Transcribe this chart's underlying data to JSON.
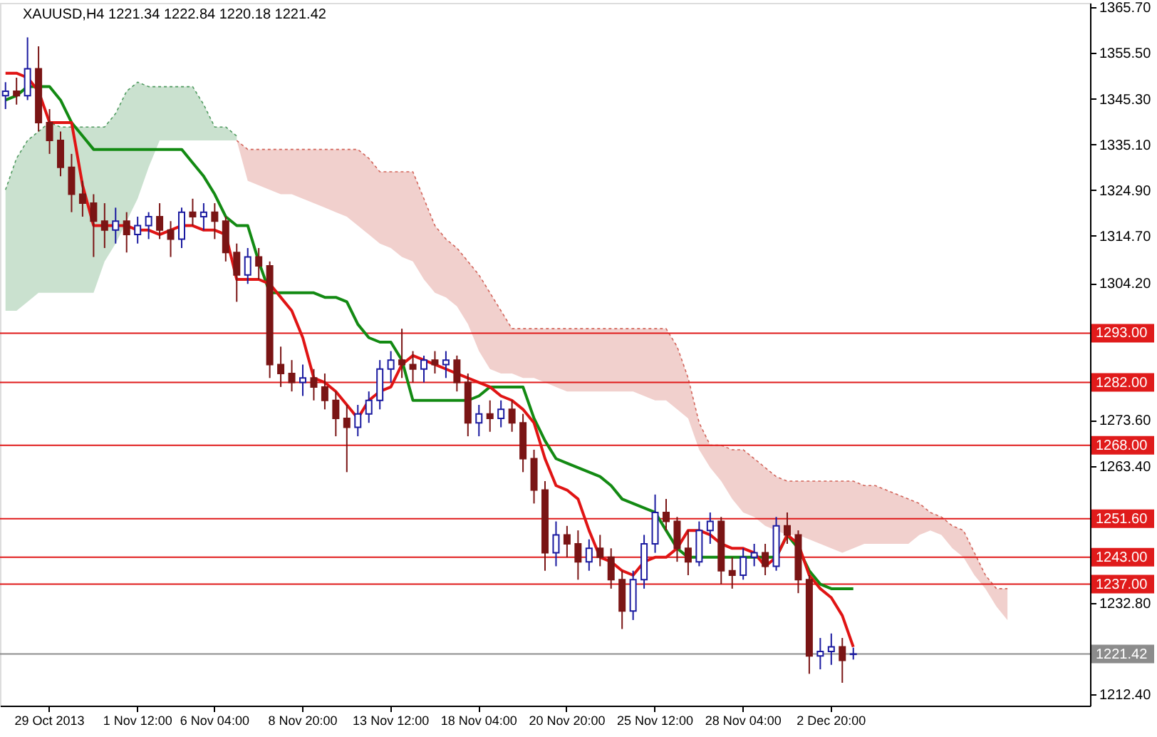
{
  "chart_data": {
    "type": "candlestick",
    "title": "XAUUSD,H4  1221.34 1222.84 1220.18 1221.42",
    "categories": [
      null,
      null,
      null,
      null,
      "29 Oct 2013",
      null,
      null,
      null,
      null,
      null,
      null,
      null,
      "1 Nov 12:00",
      null,
      null,
      null,
      null,
      null,
      null,
      "6 Nov 04:00",
      null,
      null,
      null,
      null,
      null,
      null,
      null,
      "8 Nov 20:00",
      null,
      null,
      null,
      null,
      null,
      null,
      null,
      "13 Nov 12:00",
      null,
      null,
      null,
      null,
      null,
      null,
      null,
      "18 Nov 04:00",
      null,
      null,
      null,
      null,
      null,
      null,
      null,
      "20 Nov 20:00",
      null,
      null,
      null,
      null,
      null,
      null,
      null,
      "25 Nov 12:00",
      null,
      null,
      null,
      null,
      null,
      null,
      null,
      "28 Nov 04:00",
      null,
      null,
      null,
      null,
      null,
      null,
      null,
      "2 Dec 20:00",
      null,
      null,
      null,
      null,
      null,
      null,
      null,
      null,
      null,
      null,
      null,
      null,
      null,
      null,
      null,
      null,
      null,
      null,
      null,
      null,
      null,
      null,
      null
    ],
    "ohlc": [
      [
        1346,
        1349,
        1343,
        1347
      ],
      [
        1347,
        1350,
        1344,
        1346
      ],
      [
        1346,
        1359,
        1345,
        1352
      ],
      [
        1352,
        1357,
        1338,
        1340
      ],
      [
        1340,
        1343,
        1333,
        1336
      ],
      [
        1336,
        1338,
        1328,
        1330
      ],
      [
        1330,
        1333,
        1320,
        1324
      ],
      [
        1324,
        1327,
        1319,
        1322
      ],
      [
        1322,
        1324,
        1310,
        1318
      ],
      [
        1318,
        1322,
        1312,
        1316
      ],
      [
        1316,
        1321,
        1313,
        1318
      ],
      [
        1318,
        1320,
        1311,
        1315
      ],
      [
        1315,
        1319,
        1313,
        1317
      ],
      [
        1317,
        1320,
        1314,
        1319
      ],
      [
        1319,
        1322,
        1314,
        1316
      ],
      [
        1316,
        1318,
        1310,
        1314
      ],
      [
        1314,
        1321,
        1312,
        1320
      ],
      [
        1320,
        1323,
        1317,
        1319
      ],
      [
        1319,
        1322,
        1316,
        1320
      ],
      [
        1320,
        1322,
        1314,
        1318
      ],
      [
        1318,
        1319,
        1309,
        1311
      ],
      [
        1311,
        1313,
        1300,
        1306
      ],
      [
        1306,
        1312,
        1304,
        1310
      ],
      [
        1310,
        1312,
        1305,
        1308
      ],
      [
        1308,
        1309,
        1283,
        1286
      ],
      [
        1286,
        1290,
        1281,
        1284
      ],
      [
        1284,
        1287,
        1280,
        1282
      ],
      [
        1282,
        1286,
        1279,
        1283
      ],
      [
        1283,
        1285,
        1278,
        1281
      ],
      [
        1281,
        1284,
        1276,
        1278
      ],
      [
        1278,
        1280,
        1270,
        1274
      ],
      [
        1274,
        1277,
        1262,
        1272
      ],
      [
        1272,
        1277,
        1270,
        1275
      ],
      [
        1275,
        1280,
        1273,
        1278
      ],
      [
        1278,
        1287,
        1276,
        1285
      ],
      [
        1285,
        1289,
        1282,
        1287
      ],
      [
        1287,
        1294,
        1283,
        1286
      ],
      [
        1286,
        1289,
        1282,
        1285
      ],
      [
        1285,
        1288,
        1282,
        1287
      ],
      [
        1287,
        1289,
        1284,
        1286
      ],
      [
        1286,
        1289,
        1283,
        1287
      ],
      [
        1287,
        1288,
        1280,
        1282
      ],
      [
        1282,
        1284,
        1270,
        1273
      ],
      [
        1273,
        1277,
        1270,
        1275
      ],
      [
        1275,
        1278,
        1271,
        1274
      ],
      [
        1274,
        1278,
        1272,
        1276
      ],
      [
        1276,
        1278,
        1271,
        1273
      ],
      [
        1273,
        1275,
        1262,
        1265
      ],
      [
        1265,
        1267,
        1255,
        1258
      ],
      [
        1258,
        1260,
        1240,
        1244
      ],
      [
        1244,
        1251,
        1241,
        1248
      ],
      [
        1248,
        1250,
        1243,
        1246
      ],
      [
        1246,
        1249,
        1238,
        1242
      ],
      [
        1242,
        1247,
        1240,
        1245
      ],
      [
        1245,
        1248,
        1241,
        1243
      ],
      [
        1243,
        1245,
        1236,
        1238
      ],
      [
        1238,
        1240,
        1227,
        1231
      ],
      [
        1231,
        1240,
        1229,
        1238
      ],
      [
        1238,
        1248,
        1236,
        1246
      ],
      [
        1246,
        1257,
        1244,
        1253
      ],
      [
        1253,
        1256,
        1249,
        1251
      ],
      [
        1251,
        1252,
        1242,
        1245
      ],
      [
        1245,
        1249,
        1239,
        1242
      ],
      [
        1242,
        1251,
        1241,
        1249
      ],
      [
        1249,
        1253,
        1246,
        1251
      ],
      [
        1251,
        1252,
        1237,
        1240
      ],
      [
        1240,
        1243,
        1236,
        1239
      ],
      [
        1239,
        1245,
        1238,
        1243
      ],
      [
        1243,
        1246,
        1241,
        1244
      ],
      [
        1244,
        1246,
        1239,
        1241
      ],
      [
        1241,
        1252,
        1240,
        1250
      ],
      [
        1250,
        1253,
        1246,
        1248
      ],
      [
        1248,
        1249,
        1235,
        1238
      ],
      [
        1238,
        1239,
        1217,
        1221
      ],
      [
        1221,
        1225,
        1218,
        1222
      ],
      [
        1222,
        1226,
        1219,
        1223
      ],
      [
        1223,
        1225,
        1215,
        1220
      ],
      [
        1221.34,
        1222.84,
        1220.18,
        1221.42
      ],
      null,
      null,
      null,
      null,
      null,
      null,
      null,
      null,
      null,
      null,
      null,
      null,
      null,
      null,
      null,
      null,
      null,
      null,
      null,
      null,
      null
    ],
    "colors": [
      "#1a1aa0",
      "#7a1515",
      "#1a1aa0",
      "#7a1515",
      "#7a1515",
      "#7a1515",
      "#7a1515",
      "#7a1515",
      "#7a1515",
      "#7a1515",
      "#1a1aa0",
      "#7a1515",
      "#1a1aa0",
      "#1a1aa0",
      "#7a1515",
      "#7a1515",
      "#1a1aa0",
      "#7a1515",
      "#1a1aa0",
      "#7a1515",
      "#7a1515",
      "#7a1515",
      "#1a1aa0",
      "#7a1515",
      "#7a1515",
      "#7a1515",
      "#7a1515",
      "#1a1aa0",
      "#7a1515",
      "#7a1515",
      "#7a1515",
      "#7a1515",
      "#1a1aa0",
      "#1a1aa0",
      "#1a1aa0",
      "#1a1aa0",
      "#7a1515",
      "#7a1515",
      "#1a1aa0",
      "#7a1515",
      "#1a1aa0",
      "#7a1515",
      "#7a1515",
      "#1a1aa0",
      "#7a1515",
      "#1a1aa0",
      "#7a1515",
      "#7a1515",
      "#7a1515",
      "#7a1515",
      "#1a1aa0",
      "#7a1515",
      "#7a1515",
      "#1a1aa0",
      "#7a1515",
      "#7a1515",
      "#7a1515",
      "#1a1aa0",
      "#1a1aa0",
      "#1a1aa0",
      "#7a1515",
      "#7a1515",
      "#7a1515",
      "#1a1aa0",
      "#1a1aa0",
      "#7a1515",
      "#7a1515",
      "#1a1aa0",
      "#1a1aa0",
      "#7a1515",
      "#1a1aa0",
      "#7a1515",
      "#7a1515",
      "#7a1515",
      "#1a1aa0",
      "#1a1aa0",
      "#7a1515",
      "#1a1aa0",
      null,
      null,
      null,
      null,
      null,
      null,
      null,
      null,
      null,
      null,
      null,
      null,
      null,
      null,
      null,
      null,
      null,
      null,
      null,
      null,
      null
    ],
    "series": [
      {
        "type": "line",
        "line_style": "dotted",
        "color": "#4f9a5f",
        "values": [
          1325,
          1332,
          1336,
          1338,
          1340,
          1339,
          1339,
          1339,
          1339,
          1339,
          1342,
          1347,
          1349,
          1348,
          1348,
          1348,
          1348,
          1348,
          1344,
          1339,
          1339,
          1337,
          null,
          null,
          null,
          null,
          null,
          null,
          null,
          null,
          null,
          null,
          null,
          null,
          null,
          null,
          null,
          null,
          null,
          null,
          null,
          null,
          null,
          null,
          null,
          null,
          null,
          null,
          null,
          null,
          null,
          null,
          null,
          null,
          null,
          null,
          null,
          null,
          null,
          null,
          null,
          null,
          null,
          null,
          null,
          null,
          null,
          null,
          null,
          null,
          null,
          null,
          null,
          null,
          null,
          null,
          null,
          null,
          null,
          null,
          null,
          null,
          null,
          null,
          null,
          null,
          null,
          null,
          null,
          null,
          null,
          null,
          null,
          null,
          null,
          null,
          null,
          null,
          null
        ],
        "lower": [
          1298,
          1298,
          1300,
          1302,
          1302,
          1302,
          1302,
          1302,
          1302,
          1309,
          1313,
          1318,
          1323,
          1330,
          1336,
          1336,
          1336,
          1336,
          1336,
          1336,
          1336,
          1336,
          null,
          null,
          null,
          null,
          null,
          null,
          null,
          null,
          null,
          null,
          null,
          null,
          null,
          null,
          null,
          null,
          null,
          null,
          null,
          null,
          null,
          null,
          null,
          null,
          null,
          null,
          null,
          null,
          null,
          null,
          null,
          null,
          null,
          null,
          null,
          null,
          null,
          null,
          null,
          null,
          null,
          null,
          null,
          null,
          null,
          null,
          null,
          null,
          null,
          null,
          null,
          null,
          null,
          null,
          null,
          null,
          null,
          null,
          null,
          null,
          null,
          null,
          null,
          null,
          null,
          null,
          null,
          null,
          null,
          null,
          null,
          null,
          null,
          null,
          null,
          null,
          null
        ],
        "upper": [
          1325,
          1332,
          1336,
          1338,
          1340,
          1339,
          1339,
          1339,
          1339,
          1339,
          1342,
          1347,
          1349,
          1348,
          1348,
          1348,
          1348,
          1348,
          1344,
          1339,
          1339,
          1337,
          null,
          null,
          null,
          null,
          null,
          null,
          null,
          null,
          null,
          null,
          null,
          null,
          null,
          null,
          null,
          null,
          null,
          null,
          null,
          null,
          null,
          null,
          null,
          null,
          null,
          null,
          null,
          null,
          null,
          null,
          null,
          null,
          null,
          null,
          null,
          null,
          null,
          null,
          null,
          null,
          null,
          null,
          null,
          null,
          null,
          null,
          null,
          null,
          null,
          null,
          null,
          null,
          null,
          null,
          null,
          null,
          null,
          null,
          null,
          null,
          null,
          null,
          null,
          null,
          null,
          null,
          null,
          null,
          null,
          null,
          null,
          null,
          null,
          null,
          null,
          null,
          null
        ]
      },
      {
        "type": "line",
        "line_style": "dotted",
        "color": "#d2645a",
        "values": [
          null,
          null,
          null,
          null,
          null,
          null,
          null,
          null,
          null,
          null,
          null,
          null,
          null,
          null,
          null,
          null,
          null,
          null,
          null,
          null,
          null,
          1336,
          1334,
          1334,
          1334,
          1334,
          1334,
          1334,
          1334,
          1334,
          1334,
          1334,
          1334,
          1332,
          1329,
          1329,
          1329,
          1329,
          1323,
          1317,
          1314,
          1312,
          1309,
          1306,
          1302,
          1298,
          1294,
          1294,
          1294,
          1294,
          1294,
          1294,
          1294,
          1294,
          1294,
          1294,
          1294,
          1294,
          1294,
          1294,
          1294,
          1290,
          1283,
          1273,
          1268,
          1268,
          1267,
          1267,
          1265,
          1263,
          1261,
          1260,
          1260,
          1260,
          1260,
          1260,
          1260,
          1260,
          1259,
          1259,
          1258,
          1257,
          1256,
          1255,
          1253,
          1252,
          1250,
          1249,
          1244,
          1239,
          1236,
          1236,
          null,
          null,
          null,
          null,
          null,
          null,
          null
        ],
        "lower": [
          null,
          null,
          null,
          null,
          null,
          null,
          null,
          null,
          null,
          null,
          null,
          null,
          null,
          null,
          null,
          null,
          null,
          null,
          null,
          null,
          null,
          1336,
          1327,
          1326,
          1325,
          1324,
          1324,
          1323,
          1322,
          1321,
          1320,
          1319,
          1317,
          1315,
          1313,
          1312,
          1310,
          1309,
          1305,
          1302,
          1301,
          1299,
          1295,
          1289,
          1285,
          1284,
          1284,
          1283,
          1283,
          1282,
          1281,
          1280,
          1280,
          1280,
          1280,
          1280,
          1280,
          1280,
          1279,
          1278,
          1278,
          1276,
          1274,
          1267,
          1263,
          1260,
          1256,
          1253,
          1252,
          1250,
          1249,
          1248,
          1248,
          1247,
          1246,
          1245,
          1244,
          1245,
          1246,
          1246,
          1246,
          1246,
          1246,
          1248,
          1249,
          1248,
          1245,
          1243,
          1239,
          1236,
          1232,
          1229,
          null,
          null,
          null,
          null,
          null,
          null,
          null
        ],
        "upper": [
          null,
          null,
          null,
          null,
          null,
          null,
          null,
          null,
          null,
          null,
          null,
          null,
          null,
          null,
          null,
          null,
          null,
          null,
          null,
          null,
          null,
          1336,
          1334,
          1334,
          1334,
          1334,
          1334,
          1334,
          1334,
          1334,
          1334,
          1334,
          1334,
          1332,
          1329,
          1329,
          1329,
          1329,
          1323,
          1317,
          1314,
          1312,
          1309,
          1306,
          1302,
          1298,
          1294,
          1294,
          1294,
          1294,
          1294,
          1294,
          1294,
          1294,
          1294,
          1294,
          1294,
          1294,
          1294,
          1294,
          1294,
          1290,
          1283,
          1273,
          1268,
          1268,
          1267,
          1267,
          1265,
          1263,
          1261,
          1260,
          1260,
          1260,
          1260,
          1260,
          1260,
          1260,
          1259,
          1259,
          1258,
          1257,
          1256,
          1255,
          1253,
          1252,
          1250,
          1249,
          1244,
          1239,
          1236,
          1236,
          null,
          null,
          null,
          null,
          null,
          null,
          null
        ]
      },
      {
        "type": "line",
        "color": "#138a13",
        "values": [
          1345,
          1346,
          1348,
          1348,
          1348,
          1345,
          1340,
          1337,
          1334,
          1334,
          1334,
          1334,
          1334,
          1334,
          1334,
          1334,
          1334,
          1331,
          1328,
          1324,
          1319,
          1317,
          1317,
          1309,
          1302,
          1302,
          1302,
          1302,
          1302,
          1301,
          1301,
          1300,
          1295,
          1292,
          1291,
          1291,
          1287,
          1278,
          1278,
          1278,
          1278,
          1278,
          1278,
          1279,
          1281,
          1281,
          1281,
          1281,
          1274,
          1269,
          1265,
          1264,
          1263,
          1262,
          1261,
          1259,
          1256,
          1255,
          1254,
          1253,
          1249,
          1245,
          1243,
          1243,
          1243,
          1243,
          1243,
          1243,
          1243,
          1243,
          1243,
          1248,
          1245,
          1240,
          1237,
          1236,
          1236,
          1236,
          null,
          null,
          null,
          null,
          null,
          null,
          null,
          null,
          null,
          null,
          null,
          null,
          null,
          null,
          null,
          null,
          null,
          null,
          null,
          null,
          null
        ]
      },
      {
        "type": "line",
        "color": "#e01414",
        "values": [
          1351,
          1351,
          1350,
          1347,
          1340,
          1340,
          1340,
          1326,
          1317,
          1317,
          1317,
          1317,
          1316,
          1316,
          1315,
          1316,
          1317,
          1317,
          1316,
          1316,
          1315,
          1305,
          1305,
          1305,
          1304,
          1301,
          1298,
          1292,
          1283,
          1282,
          1280,
          1277,
          1274,
          1278,
          1280,
          1281,
          1286,
          1288,
          1287,
          1286,
          1285,
          1284,
          1283,
          1282,
          1281,
          1279,
          1278,
          1276,
          1273,
          1265,
          1259,
          1258,
          1256,
          1249,
          1243,
          1242,
          1240,
          1239,
          1242,
          1243,
          1243,
          1245,
          1249,
          1249,
          1248,
          1246,
          1245,
          1245,
          1244,
          1241,
          1243,
          1248,
          1246,
          1239,
          1236,
          1234,
          1230,
          1223,
          null,
          null,
          null,
          null,
          null,
          null,
          null,
          null,
          null,
          null,
          null,
          null,
          null,
          null,
          null,
          null,
          null,
          null,
          null,
          null,
          null
        ]
      }
    ],
    "ref_lines": [
      {
        "axis": "y",
        "value": 1293,
        "label": "1293.00",
        "color": "#e01b1b"
      },
      {
        "axis": "y",
        "value": 1282,
        "label": "1282.00",
        "color": "#e01b1b"
      },
      {
        "axis": "y",
        "value": 1268,
        "label": "1268.00",
        "color": "#e01b1b"
      },
      {
        "axis": "y",
        "value": 1251.6,
        "label": "1251.60",
        "color": "#e01b1b"
      },
      {
        "axis": "y",
        "value": 1243,
        "label": "1243.00",
        "color": "#e01b1b"
      },
      {
        "axis": "y",
        "value": 1237,
        "label": "1237.00",
        "color": "#e01b1b"
      },
      {
        "axis": "y",
        "value": 1221.42,
        "label": "1221.42",
        "color": "#8c8c8c"
      }
    ],
    "ylim": [
      1209.9,
      1366.7
    ],
    "yticks": [
      {
        "value": 1212.4,
        "label": "1212.40"
      },
      {
        "value": 1232.8,
        "label": "1232.80"
      },
      {
        "value": 1263.4,
        "label": "1263.40"
      },
      {
        "value": 1273.6,
        "label": "1273.60"
      },
      {
        "value": 1304.2,
        "label": "1304.20"
      },
      {
        "value": 1314.7,
        "label": "1314.70"
      },
      {
        "value": 1324.9,
        "label": "1324.90"
      },
      {
        "value": 1335.1,
        "label": "1335.10"
      },
      {
        "value": 1345.3,
        "label": "1345.30"
      },
      {
        "value": 1355.5,
        "label": "1355.50"
      },
      {
        "value": 1365.7,
        "label": "1365.70"
      }
    ],
    "grid": false
  }
}
